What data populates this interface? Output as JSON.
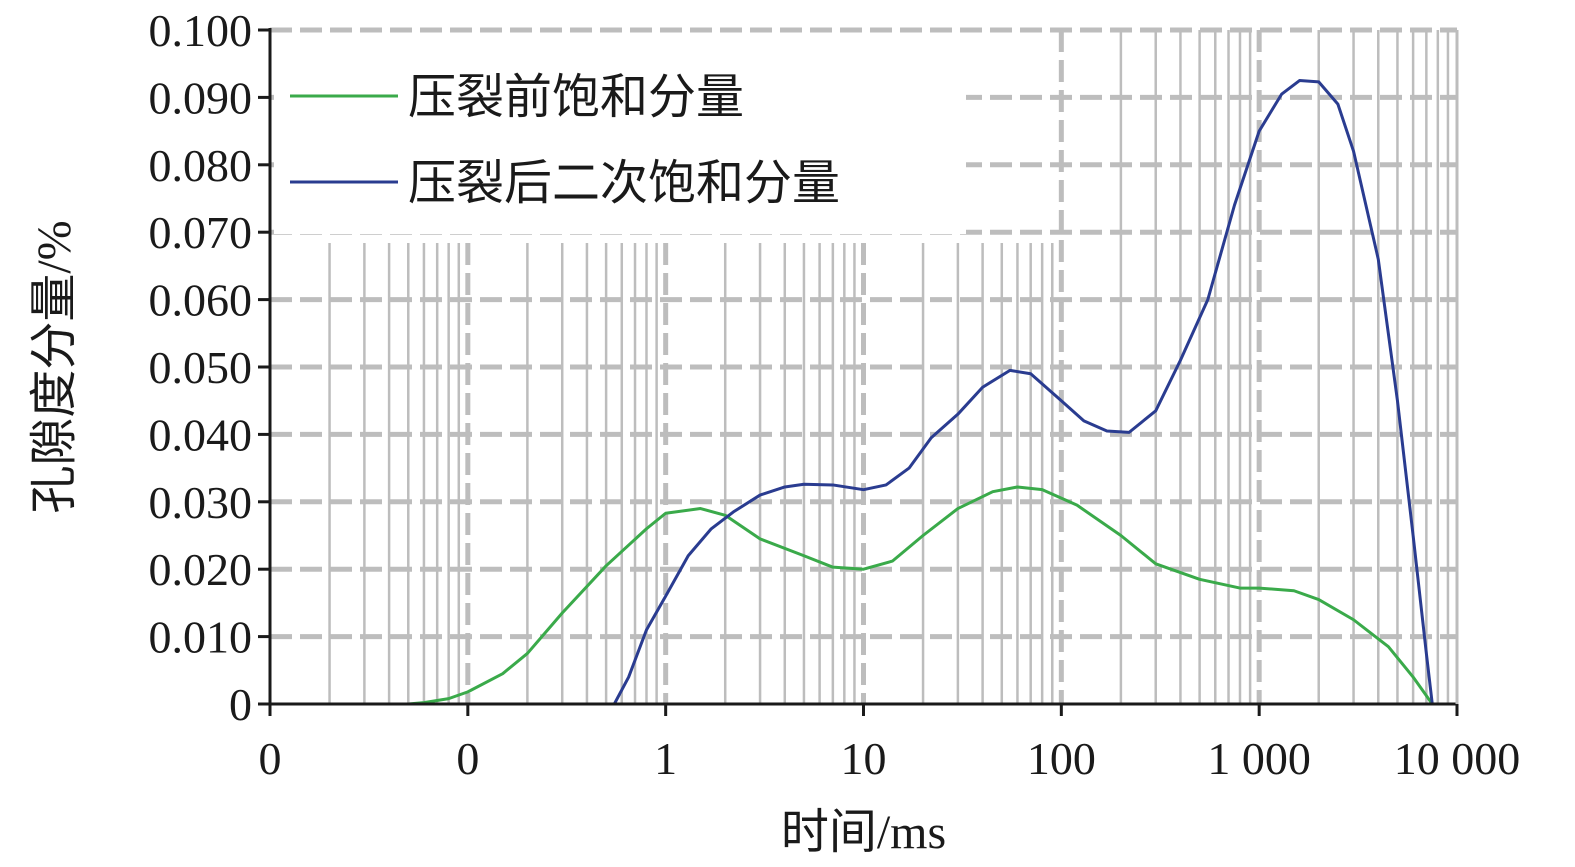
{
  "chart_data": {
    "type": "line",
    "x_scale": "log",
    "xlabel": "时间/ms",
    "ylabel": "孔隙度分量/%",
    "x_tick_labels": [
      "0",
      "0",
      "1",
      "10",
      "100",
      "1 000",
      "10 000"
    ],
    "y_tick_labels": [
      "0",
      "0.010",
      "0.020",
      "0.030",
      "0.040",
      "0.050",
      "0.060",
      "0.070",
      "0.080",
      "0.090",
      "0.100"
    ],
    "xlim": [
      0.01,
      10000
    ],
    "ylim": [
      0,
      0.1
    ],
    "grid": true,
    "legend_position": "top-left",
    "series": [
      {
        "name": "压裂前饱和分量",
        "color": "#3aaa4a",
        "points": [
          [
            0.01,
            0
          ],
          [
            0.05,
            0
          ],
          [
            0.06,
            0.0002
          ],
          [
            0.08,
            0.0008
          ],
          [
            0.1,
            0.0018
          ],
          [
            0.15,
            0.0045
          ],
          [
            0.2,
            0.0075
          ],
          [
            0.3,
            0.0135
          ],
          [
            0.5,
            0.0205
          ],
          [
            0.8,
            0.026
          ],
          [
            1,
            0.0283
          ],
          [
            1.5,
            0.029
          ],
          [
            2,
            0.028
          ],
          [
            3,
            0.0245
          ],
          [
            5,
            0.022
          ],
          [
            7,
            0.0203
          ],
          [
            10,
            0.02
          ],
          [
            14,
            0.0212
          ],
          [
            20,
            0.025
          ],
          [
            30,
            0.029
          ],
          [
            45,
            0.0315
          ],
          [
            60,
            0.0322
          ],
          [
            80,
            0.0318
          ],
          [
            120,
            0.0295
          ],
          [
            200,
            0.025
          ],
          [
            300,
            0.0208
          ],
          [
            500,
            0.0185
          ],
          [
            800,
            0.0172
          ],
          [
            1000,
            0.0172
          ],
          [
            1500,
            0.0168
          ],
          [
            2000,
            0.0155
          ],
          [
            3000,
            0.0125
          ],
          [
            4500,
            0.0085
          ],
          [
            6000,
            0.004
          ],
          [
            7500,
            0
          ],
          [
            10000,
            0
          ]
        ]
      },
      {
        "name": "压裂后二次饱和分量",
        "color": "#2a3c90",
        "points": [
          [
            0.01,
            0
          ],
          [
            0.1,
            0
          ],
          [
            0.2,
            0
          ],
          [
            0.3,
            0
          ],
          [
            0.5,
            0
          ],
          [
            0.55,
            0
          ],
          [
            0.65,
            0.004
          ],
          [
            0.8,
            0.011
          ],
          [
            1,
            0.016
          ],
          [
            1.3,
            0.022
          ],
          [
            1.7,
            0.026
          ],
          [
            2.2,
            0.0285
          ],
          [
            3,
            0.031
          ],
          [
            4,
            0.0322
          ],
          [
            5,
            0.0326
          ],
          [
            7,
            0.0325
          ],
          [
            10,
            0.0318
          ],
          [
            13,
            0.0325
          ],
          [
            17,
            0.035
          ],
          [
            22,
            0.0395
          ],
          [
            30,
            0.043
          ],
          [
            40,
            0.047
          ],
          [
            55,
            0.0495
          ],
          [
            70,
            0.049
          ],
          [
            100,
            0.045
          ],
          [
            130,
            0.042
          ],
          [
            170,
            0.0405
          ],
          [
            220,
            0.0403
          ],
          [
            300,
            0.0435
          ],
          [
            400,
            0.051
          ],
          [
            550,
            0.06
          ],
          [
            750,
            0.074
          ],
          [
            1000,
            0.085
          ],
          [
            1300,
            0.0905
          ],
          [
            1600,
            0.0925
          ],
          [
            2000,
            0.0923
          ],
          [
            2500,
            0.089
          ],
          [
            3000,
            0.082
          ],
          [
            4000,
            0.066
          ],
          [
            5000,
            0.045
          ],
          [
            6000,
            0.025
          ],
          [
            7000,
            0.0075
          ],
          [
            7500,
            0
          ],
          [
            10000,
            0
          ]
        ]
      }
    ]
  }
}
